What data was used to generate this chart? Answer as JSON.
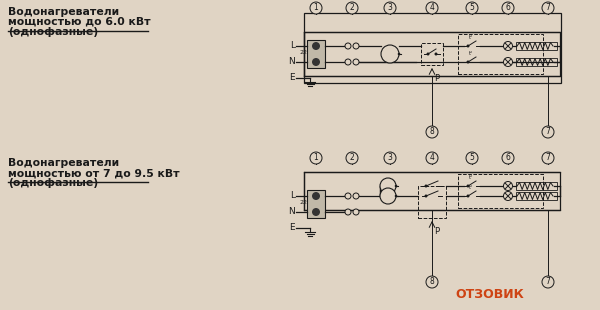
{
  "bg_color": "#e0d4c4",
  "line_color": "#1a1a1a",
  "text_color": "#1a1a1a",
  "title1_lines": [
    "Водонагреватели",
    "мощностью до 6.0 кВт",
    "(однофазные)"
  ],
  "title2_lines": [
    "Водонагреватели",
    "мощностью от 7 до 9.5 кВт",
    "(однофазные)"
  ],
  "watermark": "ОТЗОВИК",
  "voltage": "220V",
  "P_label": "P"
}
